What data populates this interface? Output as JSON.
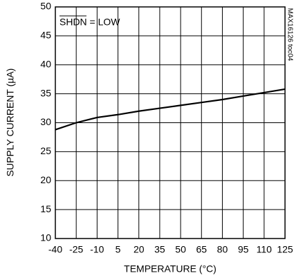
{
  "chart_data": {
    "type": "line",
    "annotation": "SHDN = LOW",
    "side_note": "MAX16126 toc04",
    "x_label": "TEMPERATURE (°C)",
    "y_label": "SUPPLY CURRENT (µA)",
    "x": [
      -40,
      -25,
      -10,
      5,
      20,
      35,
      50,
      65,
      80,
      95,
      110,
      125
    ],
    "series": [
      {
        "color": "#000000",
        "values": [
          28.8,
          30.0,
          30.9,
          31.4,
          32.0,
          32.5,
          33.0,
          33.5,
          34.0,
          34.6,
          35.2,
          35.8
        ]
      }
    ],
    "xlim": [
      -40,
      125
    ],
    "xticks": [
      -40,
      -25,
      -10,
      5,
      20,
      35,
      50,
      65,
      80,
      95,
      110,
      125
    ],
    "ylim": [
      10,
      50
    ],
    "yticks": [
      10,
      15,
      20,
      25,
      30,
      35,
      40,
      45,
      50
    ],
    "grid": true
  }
}
